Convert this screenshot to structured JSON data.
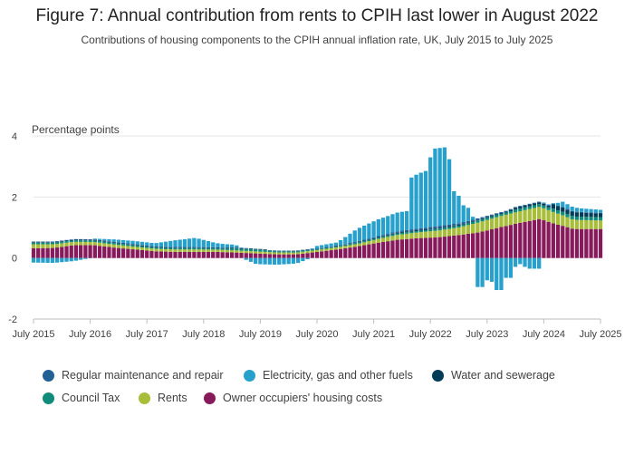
{
  "title": "Figure 7: Annual contribution from rents to CPIH last lower in August 2022",
  "subtitle": "Contributions of housing components to the CPIH annual inflation rate, UK, July 2015 to July 2025",
  "colors": {
    "regular_maintenance": "#206095",
    "electricity": "#27a0cc",
    "water": "#003c57",
    "council_tax": "#118c7b",
    "rents": "#a8bd3a",
    "ooh": "#871a5b",
    "grid": "#e6e6e6",
    "axis": "#bdbdbd",
    "text": "#414042"
  },
  "chart_data": {
    "type": "bar",
    "stacked": true,
    "title": "Figure 7: Annual contribution from rents to CPIH last lower in August 2022",
    "subtitle": "Contributions of housing components to the CPIH annual inflation rate, UK, July 2015 to July 2025",
    "ylabel": "Percentage points",
    "ylim": [
      -2,
      4
    ],
    "yticks": [
      4,
      2,
      0,
      -2
    ],
    "x_start": "2015-07",
    "x_end": "2025-07",
    "xtick_labels": [
      "July 2015",
      "July 2016",
      "July 2017",
      "July 2018",
      "July 2019",
      "July 2020",
      "July 2021",
      "July 2022",
      "July 2023",
      "July 2024",
      "July 2025"
    ],
    "legend": [
      {
        "name": "Regular maintenance and repair",
        "color": "#206095"
      },
      {
        "name": "Electricity, gas and other fuels",
        "color": "#27a0cc"
      },
      {
        "name": "Water and sewerage",
        "color": "#003c57"
      },
      {
        "name": "Council Tax",
        "color": "#118c7b"
      },
      {
        "name": "Rents",
        "color": "#a8bd3a"
      },
      {
        "name": "Owner occupiers' housing costs",
        "color": "#871a5b"
      }
    ],
    "series_order": [
      "ooh",
      "rents",
      "council_tax",
      "water",
      "regular_maintenance",
      "electricity"
    ],
    "series": {
      "ooh": {
        "name": "Owner occupiers' housing costs",
        "color": "#871a5b",
        "keys": [
          [
            0,
            0.32
          ],
          [
            6,
            0.33
          ],
          [
            12,
            0.42
          ],
          [
            18,
            0.42
          ],
          [
            24,
            0.34
          ],
          [
            30,
            0.28
          ],
          [
            36,
            0.22
          ],
          [
            42,
            0.2
          ],
          [
            48,
            0.2
          ],
          [
            54,
            0.2
          ],
          [
            60,
            0.18
          ],
          [
            66,
            0.15
          ],
          [
            72,
            0.12
          ],
          [
            78,
            0.12
          ],
          [
            84,
            0.2
          ],
          [
            90,
            0.28
          ],
          [
            96,
            0.38
          ],
          [
            102,
            0.5
          ],
          [
            108,
            0.6
          ],
          [
            114,
            0.65
          ],
          [
            120,
            0.68
          ],
          [
            126,
            0.75
          ],
          [
            132,
            0.84
          ],
          [
            138,
            1.0
          ],
          [
            144,
            1.15
          ],
          [
            150,
            1.28
          ],
          [
            155,
            1.1
          ],
          [
            157,
            1.05
          ],
          [
            160,
            0.95
          ],
          [
            168,
            0.95
          ]
        ]
      },
      "rents": {
        "name": "Rents",
        "color": "#a8bd3a",
        "keys": [
          [
            0,
            0.13
          ],
          [
            12,
            0.11
          ],
          [
            24,
            0.1
          ],
          [
            36,
            0.08
          ],
          [
            48,
            0.08
          ],
          [
            60,
            0.07
          ],
          [
            72,
            0.06
          ],
          [
            84,
            0.06
          ],
          [
            96,
            0.08
          ],
          [
            108,
            0.16
          ],
          [
            120,
            0.22
          ],
          [
            126,
            0.25
          ],
          [
            132,
            0.33
          ],
          [
            138,
            0.36
          ],
          [
            144,
            0.38
          ],
          [
            150,
            0.4
          ],
          [
            156,
            0.36
          ],
          [
            160,
            0.3
          ],
          [
            168,
            0.28
          ]
        ]
      },
      "council_tax": {
        "name": "Council Tax",
        "color": "#118c7b",
        "keys": [
          [
            0,
            0.05
          ],
          [
            24,
            0.05
          ],
          [
            45,
            0.04
          ],
          [
            57,
            0.04
          ],
          [
            58,
            0.06
          ],
          [
            69,
            0.06
          ],
          [
            70,
            0.04
          ],
          [
            81,
            0.04
          ],
          [
            82,
            0.03
          ],
          [
            93,
            0.03
          ],
          [
            94,
            0.04
          ],
          [
            105,
            0.04
          ],
          [
            106,
            0.05
          ],
          [
            117,
            0.05
          ],
          [
            118,
            0.06
          ],
          [
            129,
            0.06
          ],
          [
            130,
            0.07
          ],
          [
            141,
            0.07
          ],
          [
            142,
            0.09
          ],
          [
            153,
            0.09
          ],
          [
            154,
            0.11
          ],
          [
            168,
            0.11
          ]
        ]
      },
      "water": {
        "name": "Water and sewerage",
        "color": "#003c57",
        "keys": [
          [
            0,
            0.02
          ],
          [
            36,
            0.02
          ],
          [
            60,
            0.02
          ],
          [
            84,
            0.01
          ],
          [
            96,
            0.02
          ],
          [
            114,
            0.03
          ],
          [
            126,
            0.03
          ],
          [
            141,
            0.03
          ],
          [
            142,
            0.06
          ],
          [
            153,
            0.06
          ],
          [
            154,
            0.14
          ],
          [
            160,
            0.14
          ],
          [
            168,
            0.12
          ]
        ]
      },
      "regular_maintenance": {
        "name": "Regular maintenance and repair",
        "color": "#206095",
        "keys": [
          [
            0,
            0.02
          ],
          [
            24,
            0.02
          ],
          [
            48,
            0.02
          ],
          [
            72,
            0.01
          ],
          [
            96,
            0.02
          ],
          [
            108,
            0.04
          ],
          [
            120,
            0.06
          ],
          [
            126,
            0.05
          ],
          [
            138,
            0.03
          ],
          [
            150,
            0.02
          ],
          [
            168,
            0.02
          ]
        ]
      },
      "electricity": {
        "name": "Electricity, gas and other fuels",
        "color": "#27a0cc",
        "keys": [
          [
            0,
            -0.15
          ],
          [
            6,
            -0.16
          ],
          [
            12,
            -0.1
          ],
          [
            18,
            0.02
          ],
          [
            24,
            0.08
          ],
          [
            30,
            0.1
          ],
          [
            36,
            0.1
          ],
          [
            42,
            0.22
          ],
          [
            48,
            0.3
          ],
          [
            54,
            0.14
          ],
          [
            60,
            0.08
          ],
          [
            66,
            -0.2
          ],
          [
            72,
            -0.22
          ],
          [
            78,
            -0.18
          ],
          [
            84,
            0.08
          ],
          [
            90,
            0.1
          ],
          [
            96,
            0.42
          ],
          [
            102,
            0.55
          ],
          [
            108,
            0.62
          ],
          [
            111,
            0.62
          ],
          [
            112,
            1.7
          ],
          [
            113,
            1.75
          ],
          [
            114,
            1.8
          ],
          [
            115,
            1.82
          ],
          [
            116,
            1.85
          ],
          [
            117,
            1.88
          ],
          [
            118,
            2.55
          ],
          [
            122,
            2.55
          ],
          [
            123,
            2.4
          ],
          [
            124,
            1.1
          ],
          [
            125,
            1.05
          ],
          [
            126,
            0.9
          ],
          [
            127,
            0.55
          ],
          [
            128,
            0.55
          ],
          [
            129,
            0.4
          ],
          [
            130,
            0.35
          ],
          [
            131,
            -0.95
          ],
          [
            133,
            -0.95
          ],
          [
            134,
            -0.75
          ],
          [
            135,
            -0.7
          ],
          [
            136,
            -0.8
          ],
          [
            137,
            -1.05
          ],
          [
            139,
            -1.05
          ],
          [
            140,
            -0.65
          ],
          [
            142,
            -0.65
          ],
          [
            143,
            -0.2
          ],
          [
            145,
            -0.2
          ],
          [
            146,
            -0.35
          ],
          [
            150,
            -0.35
          ],
          [
            151,
            0.02
          ],
          [
            155,
            0.02
          ],
          [
            156,
            0.18
          ],
          [
            162,
            0.12
          ],
          [
            168,
            0.1
          ]
        ]
      }
    }
  },
  "ylabel": "Percentage points",
  "legend_labels": [
    "Regular maintenance and repair",
    "Electricity, gas and other fuels",
    "Water and sewerage",
    "Council Tax",
    "Rents",
    "Owner occupiers' housing costs"
  ]
}
